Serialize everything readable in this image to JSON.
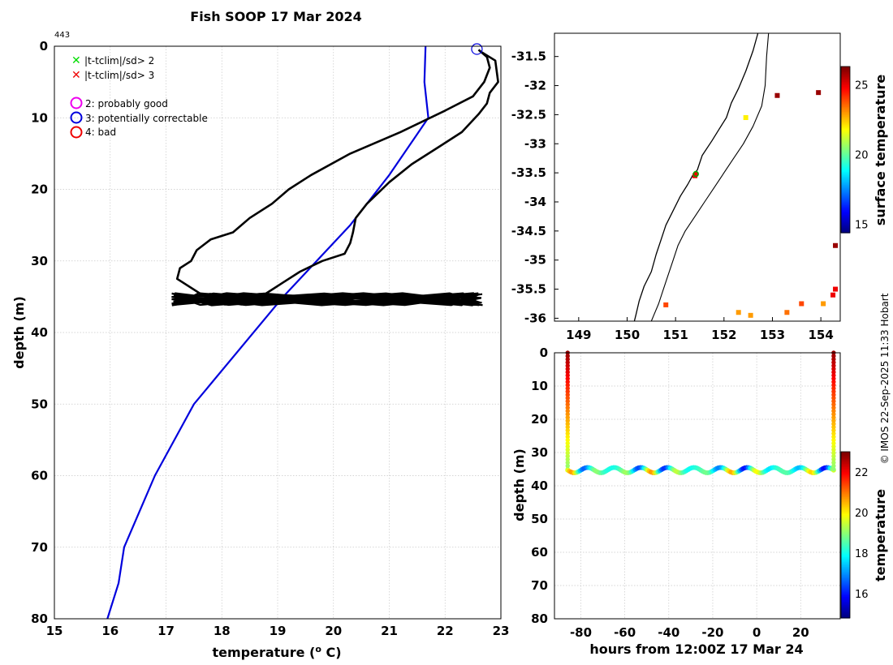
{
  "figure": {
    "title": "Fish SOOP 17 Mar 2024",
    "profile_id": "443",
    "credit": "© IMOS 22-Sep-2025 11:33 Hobart"
  },
  "legend": {
    "items": [
      {
        "marker": "x",
        "color": "#00dd00",
        "label": "|t-tclim|/sd> 2"
      },
      {
        "marker": "x",
        "color": "#ee0000",
        "label": "|t-tclim|/sd> 3"
      },
      {
        "marker": "circle",
        "color": "#ee00ee",
        "label": "2: probably good"
      },
      {
        "marker": "circle",
        "color": "#0000dd",
        "label": "3: potentially correctable"
      },
      {
        "marker": "circle",
        "color": "#ee0000",
        "label": "4: bad"
      }
    ]
  },
  "chart_data": [
    {
      "id": "profile",
      "type": "line",
      "xlabel": "temperature (o C)",
      "ylabel": "depth (m)",
      "xlim": [
        15,
        23
      ],
      "ylim": [
        0,
        80
      ],
      "y_reversed": true,
      "xticks": [
        15,
        16,
        17,
        18,
        19,
        20,
        21,
        22,
        23
      ],
      "yticks": [
        0,
        10,
        20,
        30,
        40,
        50,
        60,
        70,
        80
      ],
      "grid": true,
      "series": [
        {
          "role": "climatology",
          "color": "#0000dd",
          "x": [
            21.65,
            21.63,
            21.7,
            21.0,
            20.3,
            19.1,
            17.5,
            16.8,
            16.25,
            16.15,
            15.95
          ],
          "y": [
            0,
            5,
            10,
            18,
            25,
            35,
            50,
            60,
            70,
            75,
            80
          ]
        },
        {
          "role": "measured-descent",
          "color": "#000000",
          "x": [
            22.65,
            22.9,
            22.95,
            22.8,
            22.75,
            22.6,
            22.3,
            21.9,
            21.4,
            21.0,
            20.8,
            20.6,
            20.4,
            20.35,
            20.3,
            20.2,
            19.8,
            19.4,
            19.1,
            18.9,
            18.7,
            17.8
          ],
          "y": [
            0.8,
            2.0,
            5.0,
            6.5,
            8.0,
            9.5,
            12.0,
            14.0,
            16.5,
            19.0,
            20.5,
            22.0,
            24.0,
            26.0,
            27.5,
            29.0,
            30.0,
            31.5,
            33.0,
            34.0,
            35.0,
            35.5
          ]
        },
        {
          "role": "measured-ascent",
          "color": "#000000",
          "x": [
            17.8,
            17.2,
            17.25,
            17.45,
            17.55,
            17.8,
            18.2,
            18.5,
            18.9,
            19.2,
            19.6,
            20.3,
            21.2,
            22.0,
            22.5,
            22.7,
            22.8,
            22.75,
            22.6
          ],
          "y": [
            35.5,
            32.5,
            31.0,
            30.0,
            28.5,
            27.0,
            26.0,
            24.0,
            22.0,
            20.0,
            18.0,
            15.0,
            12.0,
            9.0,
            7.0,
            5.0,
            3.0,
            1.5,
            0.5
          ]
        },
        {
          "role": "bottom-oscillation",
          "color": "#000000",
          "x_range": [
            17.1,
            22.7
          ],
          "depth_range": [
            34.5,
            36.2
          ]
        }
      ],
      "annotations": [
        {
          "marker": "circle",
          "color": "#0000dd",
          "x": 22.57,
          "y": 0.4
        }
      ]
    },
    {
      "id": "map",
      "type": "heatmap",
      "xlim": [
        148.5,
        154.4
      ],
      "ylim": [
        -36.05,
        -31.1
      ],
      "xticks": [
        149,
        150,
        151,
        152,
        153,
        154
      ],
      "yticks": [
        -31.5,
        -32,
        -32.5,
        -33,
        -33.5,
        -34,
        -34.5,
        -35,
        -35.5,
        -36
      ],
      "xticklabels": [
        "149",
        "150",
        "151",
        "152",
        "153",
        "154"
      ],
      "yticklabels": [
        "-31.5",
        "-32",
        "-32.5",
        "-33",
        "-33.5",
        "-34",
        "-34.5",
        "-35",
        "-35.5",
        "-36"
      ],
      "colorbar": {
        "label": "surface temperature",
        "range": [
          14.4,
          26.3
        ],
        "ticks": [
          15,
          20,
          25
        ]
      },
      "coastline": {
        "lon": [
          152.7,
          152.6,
          152.45,
          152.3,
          152.15,
          152.05,
          151.9,
          151.75,
          151.55,
          151.45,
          151.35,
          151.25,
          151.1,
          150.95,
          150.8,
          150.7,
          150.6,
          150.5,
          150.35,
          150.25,
          150.18,
          150.15
        ],
        "lat": [
          -31.1,
          -31.4,
          -31.75,
          -32.05,
          -32.3,
          -32.55,
          -32.75,
          -32.95,
          -33.2,
          -33.45,
          -33.55,
          -33.7,
          -33.9,
          -34.15,
          -34.4,
          -34.65,
          -34.9,
          -35.2,
          -35.45,
          -35.7,
          -35.95,
          -36.05
        ]
      },
      "contour": {
        "lon": [
          152.92,
          152.88,
          152.85,
          152.78,
          152.6,
          152.4,
          152.2,
          152.0,
          151.8,
          151.6,
          151.4,
          151.2,
          151.05,
          150.95,
          150.85,
          150.75,
          150.65,
          150.55,
          150.5
        ],
        "lat": [
          -31.1,
          -31.5,
          -32.0,
          -32.35,
          -32.7,
          -33.0,
          -33.25,
          -33.5,
          -33.75,
          -34.0,
          -34.25,
          -34.5,
          -34.75,
          -35.0,
          -35.25,
          -35.5,
          -35.75,
          -35.95,
          -36.05
        ]
      },
      "sst_pixels": [
        {
          "lon": 153.95,
          "lat": -32.12,
          "t": 26
        },
        {
          "lon": 153.1,
          "lat": -32.17,
          "t": 26
        },
        {
          "lon": 152.45,
          "lat": -32.55,
          "t": 22
        },
        {
          "lon": 151.4,
          "lat": -33.55,
          "t": 25
        },
        {
          "lon": 154.3,
          "lat": -34.75,
          "t": 26
        },
        {
          "lon": 154.3,
          "lat": -35.5,
          "t": 25
        },
        {
          "lon": 150.8,
          "lat": -35.77,
          "t": 24
        },
        {
          "lon": 152.3,
          "lat": -35.9,
          "t": 23
        },
        {
          "lon": 152.55,
          "lat": -35.95,
          "t": 23
        },
        {
          "lon": 153.3,
          "lat": -35.9,
          "t": 23.5
        },
        {
          "lon": 153.6,
          "lat": -35.75,
          "t": 24
        },
        {
          "lon": 154.05,
          "lat": -35.75,
          "t": 23
        },
        {
          "lon": 154.25,
          "lat": -35.6,
          "t": 25
        }
      ],
      "marker": {
        "lon": 151.42,
        "lat": -33.52
      }
    },
    {
      "id": "track",
      "type": "scatter",
      "xlabel": "hours from 12:00Z 17 Mar 24",
      "ylabel": "depth (m)",
      "xlim": [
        -92,
        38
      ],
      "ylim": [
        0,
        80
      ],
      "y_reversed": true,
      "xticks": [
        -80,
        -60,
        -40,
        -20,
        0,
        20
      ],
      "yticks": [
        0,
        10,
        20,
        30,
        40,
        50,
        60,
        70,
        80
      ],
      "colorbar": {
        "label": "temperature",
        "range": [
          14.8,
          23.0
        ],
        "ticks": [
          16,
          18,
          20,
          22
        ]
      },
      "series": [
        {
          "role": "descent",
          "x": -86,
          "depth_range": [
            0,
            35
          ],
          "temp_range": [
            22.8,
            19
          ]
        },
        {
          "role": "bottom",
          "x_range": [
            -86,
            35
          ],
          "depth_mean": 35.3,
          "depth_amp": 0.8,
          "temp_mean": 18.3,
          "temp_amp": 2.5
        },
        {
          "role": "ascent",
          "x": 35,
          "depth_range": [
            35,
            0
          ],
          "temp_range": [
            19,
            22.8
          ]
        }
      ]
    }
  ]
}
